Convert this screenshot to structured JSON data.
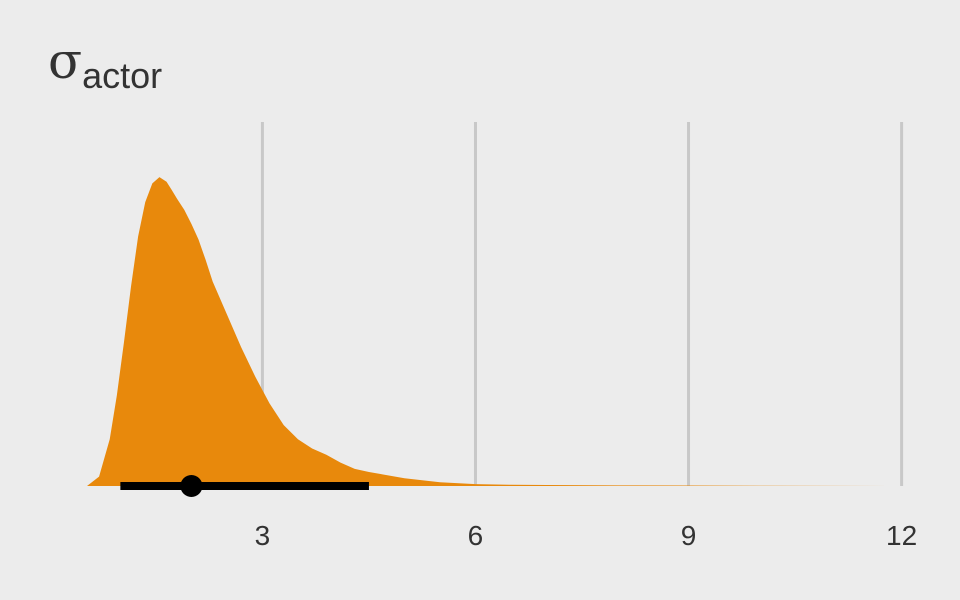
{
  "chart_data": {
    "type": "area",
    "title": "σ",
    "title_subscript": "actor",
    "xlabel": "",
    "ylabel": "",
    "xlim": [
      0.53,
      12.4
    ],
    "ylim": [
      0,
      1
    ],
    "xticks": [
      3,
      6,
      9,
      12
    ],
    "xtick_labels": [
      "3",
      "6",
      "9",
      "12"
    ],
    "grid": "vertical",
    "fill_color": "#E8890C",
    "interval_color": "#000000",
    "density": {
      "x": [
        0.53,
        0.7,
        0.85,
        0.95,
        1.05,
        1.15,
        1.25,
        1.35,
        1.45,
        1.55,
        1.65,
        1.72,
        1.8,
        1.9,
        2.0,
        2.1,
        2.2,
        2.3,
        2.5,
        2.7,
        2.9,
        3.1,
        3.3,
        3.5,
        3.7,
        3.9,
        4.1,
        4.3,
        4.5,
        5.0,
        5.5,
        6.0,
        6.5,
        7.0,
        8.0,
        9.0,
        10.0,
        11.0,
        12.0
      ],
      "y": [
        0.0,
        0.03,
        0.15,
        0.29,
        0.46,
        0.64,
        0.8,
        0.91,
        0.97,
        0.99,
        0.975,
        0.95,
        0.92,
        0.885,
        0.84,
        0.79,
        0.725,
        0.655,
        0.55,
        0.445,
        0.35,
        0.265,
        0.195,
        0.15,
        0.12,
        0.1,
        0.075,
        0.055,
        0.045,
        0.025,
        0.012,
        0.006,
        0.004,
        0.003,
        0.002,
        0.0015,
        0.001,
        0.0005,
        0.0
      ]
    },
    "point_estimate": 2.0,
    "interval": [
      1.0,
      4.5
    ]
  }
}
